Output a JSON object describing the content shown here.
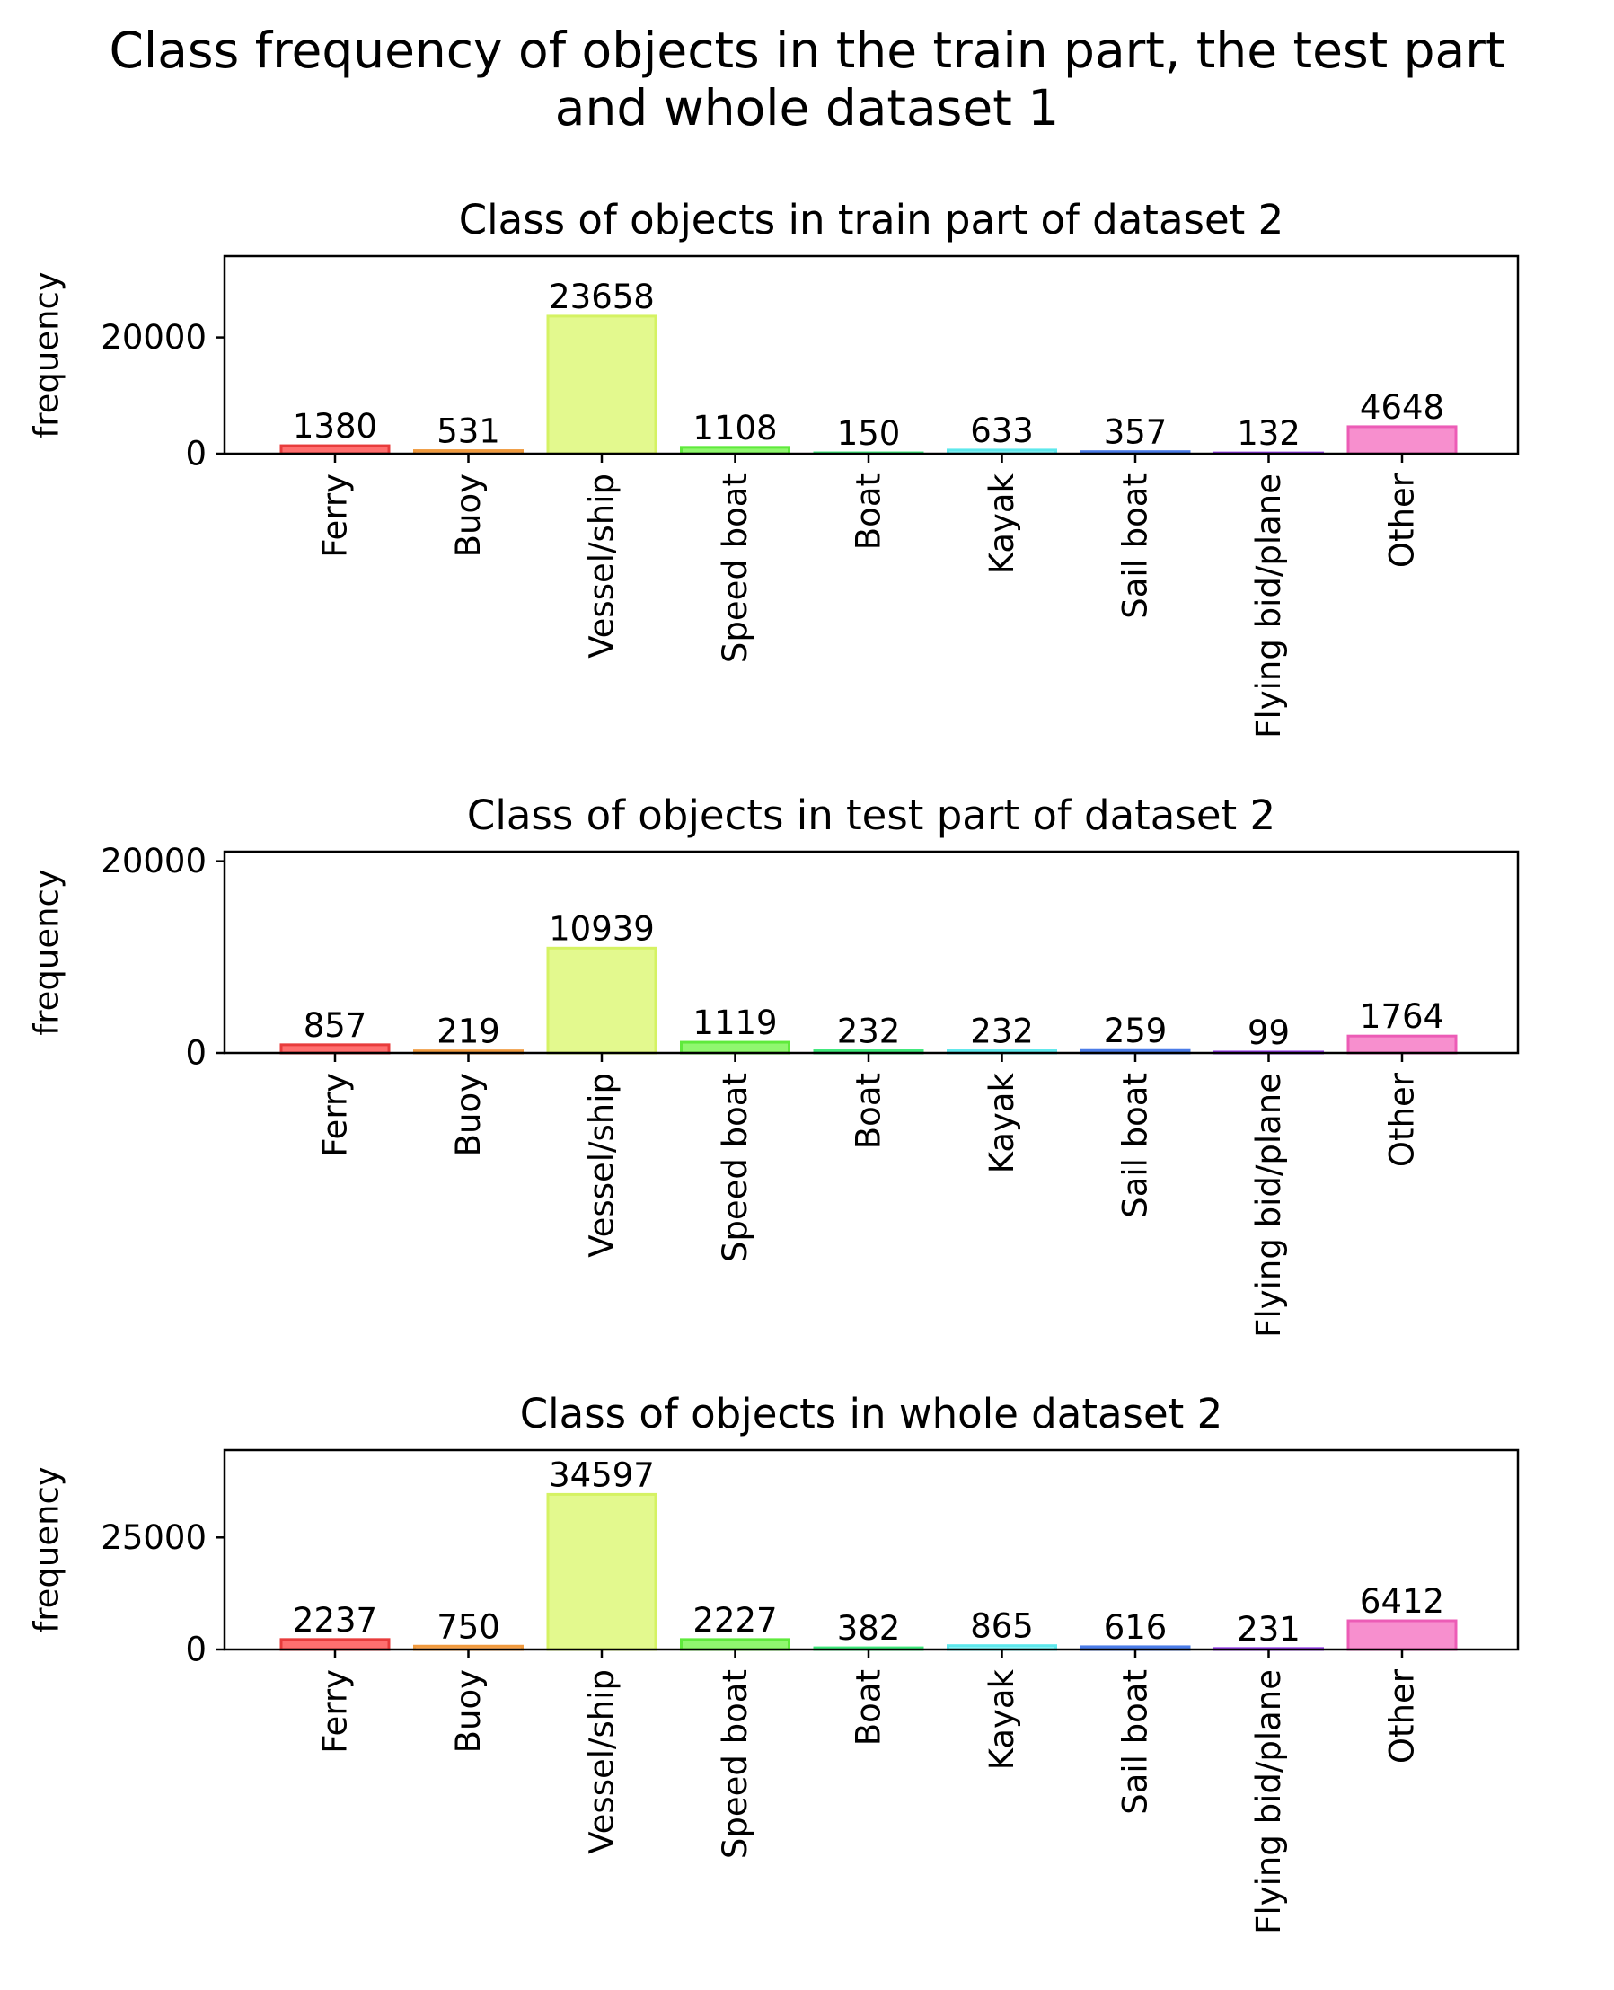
{
  "figure": {
    "title_line1": "Class frequency of objects in the train part, the test part",
    "title_line2": "and whole dataset 1"
  },
  "chart_data": [
    {
      "type": "bar",
      "title": "Class of objects in train part of dataset 2",
      "xlabel": "",
      "ylabel": "frequency",
      "categories": [
        "Ferry",
        "Buoy",
        "Vessel/ship",
        "Speed boat",
        "Boat",
        "Kayak",
        "Sail boat",
        "Flying bid/plane",
        "Other"
      ],
      "values": [
        1380,
        531,
        23658,
        1108,
        150,
        633,
        357,
        132,
        4648
      ],
      "yticks": [
        0,
        20000
      ],
      "ylim": [
        0,
        34000
      ],
      "grid": false,
      "data_labels": true
    },
    {
      "type": "bar",
      "title": "Class of objects in test part of dataset 2",
      "xlabel": "",
      "ylabel": "frequency",
      "categories": [
        "Ferry",
        "Buoy",
        "Vessel/ship",
        "Speed boat",
        "Boat",
        "Kayak",
        "Sail boat",
        "Flying bid/plane",
        "Other"
      ],
      "values": [
        857,
        219,
        10939,
        1119,
        232,
        232,
        259,
        99,
        1764
      ],
      "yticks": [
        0,
        20000
      ],
      "ylim": [
        0,
        21000
      ],
      "grid": false,
      "data_labels": true
    },
    {
      "type": "bar",
      "title": "Class of objects in whole dataset 2",
      "xlabel": "",
      "ylabel": "frequency",
      "categories": [
        "Ferry",
        "Buoy",
        "Vessel/ship",
        "Speed boat",
        "Boat",
        "Kayak",
        "Sail boat",
        "Flying bid/plane",
        "Other"
      ],
      "values": [
        2237,
        750,
        34597,
        2227,
        382,
        865,
        616,
        231,
        6412
      ],
      "yticks": [
        0,
        25000
      ],
      "ylim": [
        0,
        44500
      ],
      "grid": false,
      "data_labels": true
    }
  ],
  "colors": {
    "bar_fills": [
      "#ff6f6f",
      "#ffb066",
      "#e3f98e",
      "#90f76f",
      "#6ff3a0",
      "#8ff3f6",
      "#7a9ff0",
      "#b46ff0",
      "#f78fce"
    ],
    "bar_edges": [
      "#e83c3c",
      "#f09a3e",
      "#d5f263",
      "#5fea3c",
      "#3ee87a",
      "#5ee8ec",
      "#4b7ce8",
      "#943ce8",
      "#ec5cb6"
    ],
    "axis": "#000000"
  }
}
